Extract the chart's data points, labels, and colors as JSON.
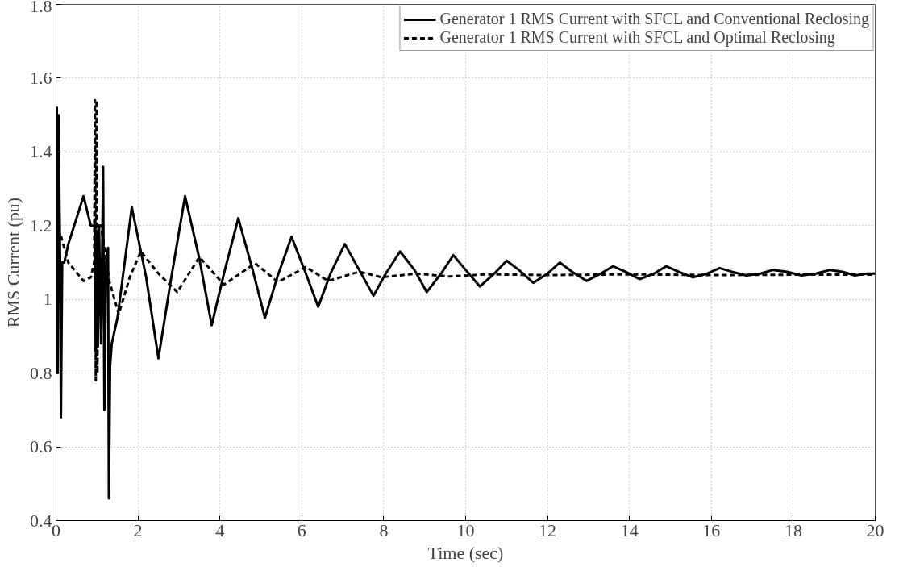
{
  "chart_data": {
    "type": "line",
    "xlabel": "Time (sec)",
    "ylabel": "RMS Current (pu)",
    "xlim": [
      0,
      20
    ],
    "ylim": [
      0.4,
      1.8
    ],
    "xticks": [
      0,
      2,
      4,
      6,
      8,
      10,
      12,
      14,
      16,
      18,
      20
    ],
    "yticks": [
      0.4,
      0.6,
      0.8,
      1,
      1.2,
      1.4,
      1.6,
      1.8
    ],
    "grid": true,
    "legend": "top right",
    "series": [
      {
        "name": "Generator 1 RMS Current with SFCL and Conventional Reclosing",
        "color": "#000000",
        "line_style": "solid",
        "x": [
          0,
          0.02,
          0.04,
          0.06,
          0.1,
          0.12,
          0.15,
          0.2,
          0.3,
          0.5,
          0.67,
          0.85,
          0.95,
          0.97,
          1.0,
          1.02,
          1.05,
          1.1,
          1.15,
          1.18,
          1.22,
          1.27,
          1.29,
          1.32,
          1.36,
          1.5,
          1.85,
          2.2,
          2.5,
          2.8,
          3.15,
          3.5,
          3.8,
          4.1,
          4.45,
          4.8,
          5.1,
          5.4,
          5.75,
          6.1,
          6.4,
          6.7,
          7.05,
          7.4,
          7.75,
          8.05,
          8.4,
          8.75,
          9.05,
          9.4,
          9.7,
          10.0,
          10.35,
          10.7,
          11.0,
          11.3,
          11.65,
          12.0,
          12.3,
          12.6,
          12.95,
          13.3,
          13.6,
          13.9,
          14.25,
          14.6,
          14.9,
          15.2,
          15.55,
          15.9,
          16.2,
          16.5,
          16.85,
          17.2,
          17.5,
          17.85,
          18.2,
          18.55,
          18.9,
          19.2,
          19.5,
          19.8,
          20
        ],
        "values": [
          1.08,
          1.52,
          0.8,
          1.5,
          1.1,
          0.68,
          1.1,
          1.1,
          1.15,
          1.22,
          1.28,
          1.2,
          1.2,
          0.86,
          1.18,
          0.87,
          1.2,
          0.88,
          1.36,
          0.7,
          1.1,
          1.14,
          0.46,
          0.82,
          0.88,
          0.95,
          1.25,
          1.06,
          0.84,
          1.05,
          1.28,
          1.11,
          0.93,
          1.07,
          1.22,
          1.08,
          0.95,
          1.06,
          1.17,
          1.07,
          0.98,
          1.07,
          1.15,
          1.08,
          1.01,
          1.07,
          1.13,
          1.08,
          1.02,
          1.07,
          1.12,
          1.08,
          1.035,
          1.07,
          1.105,
          1.08,
          1.045,
          1.07,
          1.1,
          1.075,
          1.05,
          1.07,
          1.09,
          1.075,
          1.055,
          1.07,
          1.09,
          1.075,
          1.06,
          1.07,
          1.085,
          1.075,
          1.065,
          1.07,
          1.08,
          1.075,
          1.065,
          1.07,
          1.08,
          1.075,
          1.065,
          1.07,
          1.07
        ]
      },
      {
        "name": "Generator 1 RMS Current with SFCL and Optimal Reclosing",
        "color": "#000000",
        "line_style": "dashed",
        "x": [
          0,
          0.05,
          0.1,
          0.3,
          0.67,
          0.85,
          0.93,
          0.95,
          0.97,
          0.99,
          1.01,
          1.03,
          1.1,
          1.3,
          1.53,
          1.8,
          2.07,
          2.5,
          2.96,
          3.5,
          4.1,
          4.86,
          5.42,
          6.1,
          6.64,
          7.4,
          7.95,
          8.8,
          9.6,
          10.5,
          12,
          14,
          16,
          18,
          20
        ],
        "values": [
          1.08,
          1.16,
          1.18,
          1.1,
          1.05,
          1.06,
          1.1,
          1.54,
          0.78,
          1.54,
          0.8,
          1.2,
          1.2,
          1.05,
          0.96,
          1.06,
          1.13,
          1.07,
          1.02,
          1.115,
          1.04,
          1.098,
          1.047,
          1.088,
          1.05,
          1.075,
          1.06,
          1.07,
          1.062,
          1.068,
          1.066,
          1.068,
          1.066,
          1.067,
          1.067
        ]
      }
    ]
  }
}
